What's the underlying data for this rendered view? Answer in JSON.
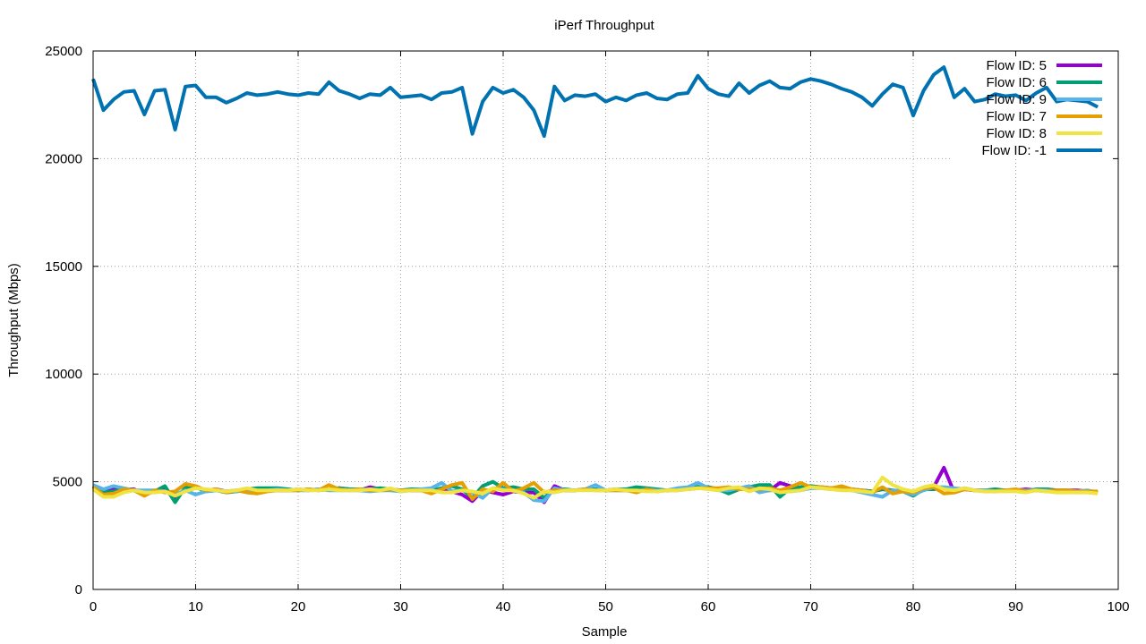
{
  "chart_data": {
    "type": "line",
    "title": "iPerf Throughput",
    "xlabel": "Sample",
    "ylabel": "Throughput (Mbps)",
    "xlim": [
      0,
      100
    ],
    "ylim": [
      0,
      25000
    ],
    "xticks": [
      0,
      10,
      20,
      30,
      40,
      50,
      60,
      70,
      80,
      90,
      100
    ],
    "yticks": [
      0,
      5000,
      10000,
      15000,
      20000,
      25000
    ],
    "grid": true,
    "legend_position": "top-right",
    "series": [
      {
        "name": "Flow ID: 5",
        "color": "#9400d3",
        "values": [
          4800,
          4450,
          4700,
          4650,
          4650,
          4400,
          4550,
          4650,
          4200,
          4700,
          4750,
          4600,
          4650,
          4550,
          4600,
          4600,
          4550,
          4650,
          4600,
          4600,
          4650,
          4600,
          4650,
          4650,
          4700,
          4650,
          4600,
          4750,
          4650,
          4650,
          4600,
          4600,
          4600,
          4550,
          4600,
          4550,
          4400,
          4100,
          4600,
          4500,
          4400,
          4550,
          4500,
          4500,
          4050,
          4800,
          4600,
          4600,
          4650,
          4650,
          4600,
          4650,
          4650,
          4600,
          4650,
          4600,
          4600,
          4650,
          4650,
          4700,
          4750,
          4650,
          4650,
          4650,
          4700,
          4650,
          4600,
          4950,
          4800,
          4700,
          4700,
          4750,
          4700,
          4700,
          4650,
          4600,
          4550,
          4650,
          4600,
          4550,
          4500,
          4650,
          4750,
          5650,
          4500,
          4650,
          4600,
          4600,
          4600,
          4600,
          4600,
          4650,
          4600,
          4650,
          4600,
          4600,
          4600,
          4550,
          4500
        ]
      },
      {
        "name": "Flow ID: 6",
        "color": "#009e73",
        "values": [
          4800,
          4500,
          4550,
          4650,
          4600,
          4500,
          4550,
          4800,
          4050,
          4750,
          4750,
          4550,
          4600,
          4500,
          4550,
          4650,
          4700,
          4700,
          4700,
          4650,
          4600,
          4650,
          4600,
          4650,
          4700,
          4650,
          4650,
          4650,
          4700,
          4650,
          4600,
          4650,
          4650,
          4600,
          4700,
          4800,
          4650,
          4250,
          4800,
          5000,
          4700,
          4750,
          4650,
          4650,
          4250,
          4650,
          4650,
          4600,
          4650,
          4650,
          4600,
          4650,
          4650,
          4750,
          4700,
          4650,
          4600,
          4650,
          4650,
          4800,
          4750,
          4650,
          4450,
          4650,
          4750,
          4850,
          4850,
          4300,
          4700,
          4750,
          4800,
          4750,
          4700,
          4650,
          4650,
          4600,
          4550,
          4650,
          4600,
          4550,
          4350,
          4650,
          4650,
          4700,
          4550,
          4700,
          4600,
          4600,
          4650,
          4600,
          4600,
          4550,
          4650,
          4650,
          4600,
          4600,
          4550,
          4550,
          4500
        ]
      },
      {
        "name": "Flow ID: 9",
        "color": "#56b4e9",
        "values": [
          4850,
          4650,
          4800,
          4700,
          4600,
          4600,
          4600,
          4550,
          4400,
          4600,
          4400,
          4550,
          4600,
          4550,
          4550,
          4600,
          4600,
          4600,
          4650,
          4600,
          4600,
          4600,
          4650,
          4600,
          4600,
          4600,
          4600,
          4550,
          4600,
          4600,
          4550,
          4600,
          4650,
          4700,
          4950,
          4550,
          4600,
          4500,
          4250,
          4700,
          4650,
          4600,
          4500,
          4150,
          4100,
          4700,
          4600,
          4600,
          4650,
          4850,
          4600,
          4600,
          4600,
          4550,
          4650,
          4600,
          4600,
          4700,
          4750,
          4950,
          4700,
          4600,
          4600,
          4700,
          4800,
          4500,
          4600,
          4600,
          4550,
          4600,
          4700,
          4700,
          4650,
          4650,
          4600,
          4500,
          4400,
          4300,
          4600,
          4550,
          4400,
          4600,
          4750,
          4750,
          4700,
          4650,
          4600,
          4600,
          4550,
          4600,
          4600,
          4600,
          4600,
          4600,
          4550,
          4550,
          4550,
          4600,
          4500
        ]
      },
      {
        "name": "Flow ID: 7",
        "color": "#e69f00",
        "values": [
          4750,
          4400,
          4450,
          4650,
          4600,
          4350,
          4600,
          4500,
          4550,
          4900,
          4800,
          4600,
          4650,
          4500,
          4600,
          4500,
          4450,
          4550,
          4600,
          4600,
          4600,
          4650,
          4600,
          4850,
          4650,
          4600,
          4650,
          4600,
          4600,
          4650,
          4600,
          4600,
          4600,
          4450,
          4650,
          4850,
          4950,
          4200,
          4650,
          4550,
          4950,
          4550,
          4700,
          4950,
          4500,
          4600,
          4600,
          4600,
          4650,
          4600,
          4600,
          4600,
          4600,
          4500,
          4650,
          4550,
          4600,
          4600,
          4650,
          4700,
          4700,
          4700,
          4750,
          4650,
          4650,
          4650,
          4700,
          4600,
          4750,
          4950,
          4750,
          4750,
          4700,
          4800,
          4650,
          4600,
          4500,
          4750,
          4450,
          4550,
          4500,
          4700,
          4750,
          4450,
          4500,
          4650,
          4600,
          4550,
          4550,
          4600,
          4650,
          4550,
          4600,
          4550,
          4600,
          4600,
          4550,
          4550,
          4550
        ]
      },
      {
        "name": "Flow ID: 8",
        "color": "#f0e442",
        "values": [
          4650,
          4300,
          4300,
          4500,
          4600,
          4500,
          4500,
          4550,
          4350,
          4550,
          4700,
          4650,
          4600,
          4550,
          4600,
          4700,
          4600,
          4600,
          4600,
          4600,
          4650,
          4600,
          4600,
          4650,
          4600,
          4600,
          4600,
          4650,
          4600,
          4700,
          4550,
          4600,
          4600,
          4600,
          4500,
          4500,
          4600,
          4550,
          4450,
          4700,
          4600,
          4600,
          4450,
          4250,
          4550,
          4500,
          4600,
          4600,
          4600,
          4600,
          4600,
          4650,
          4600,
          4600,
          4550,
          4550,
          4600,
          4600,
          4650,
          4700,
          4650,
          4600,
          4700,
          4750,
          4550,
          4700,
          4650,
          4500,
          4550,
          4600,
          4750,
          4700,
          4650,
          4600,
          4600,
          4550,
          4500,
          5200,
          4850,
          4650,
          4550,
          4750,
          4850,
          4650,
          4600,
          4700,
          4600,
          4550,
          4550,
          4550,
          4550,
          4500,
          4600,
          4550,
          4500,
          4500,
          4500,
          4500,
          4450
        ]
      },
      {
        "name": "Flow ID: -1",
        "color": "#0072b2",
        "values": [
          23700,
          22250,
          22750,
          23100,
          23150,
          22050,
          23150,
          23200,
          21350,
          23350,
          23400,
          22850,
          22850,
          22600,
          22800,
          23050,
          22950,
          23000,
          23100,
          23000,
          22950,
          23050,
          23000,
          23550,
          23150,
          23000,
          22800,
          23000,
          22950,
          23300,
          22850,
          22900,
          22950,
          22750,
          23050,
          23100,
          23300,
          21150,
          22650,
          23300,
          23050,
          23200,
          22850,
          22250,
          21050,
          23350,
          22700,
          22950,
          22900,
          23000,
          22650,
          22850,
          22700,
          22950,
          23050,
          22800,
          22750,
          23000,
          23050,
          23850,
          23250,
          23000,
          22900,
          23500,
          23050,
          23400,
          23600,
          23300,
          23250,
          23550,
          23700,
          23600,
          23450,
          23250,
          23100,
          22850,
          22450,
          23000,
          23450,
          23300,
          22000,
          23150,
          23900,
          24250,
          22850,
          23250,
          22650,
          22750,
          23000,
          22900,
          22950,
          22700,
          23050,
          23300,
          22650,
          22750,
          22700,
          22650,
          22400
        ]
      }
    ]
  }
}
